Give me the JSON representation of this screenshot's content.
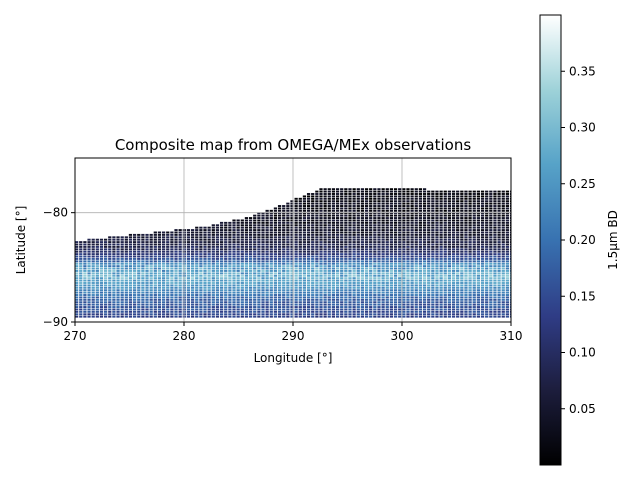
{
  "chart_data": {
    "type": "heatmap",
    "title": "Composite map from OMEGA/MEx observations",
    "xlabel": "Longitude [°]",
    "ylabel": "Latitude [°]",
    "xlim": [
      270,
      310
    ],
    "ylim": [
      -90,
      -75
    ],
    "xticks": [
      270,
      280,
      290,
      300,
      310
    ],
    "xtick_labels": [
      "270",
      "280",
      "290",
      "300",
      "310"
    ],
    "yticks": [
      -90,
      -80
    ],
    "ytick_labels": [
      "−90",
      "−80"
    ],
    "grid": true,
    "colorbar": {
      "label": "1.5µm BD",
      "range": [
        0.0,
        0.4
      ],
      "ticks": [
        0.05,
        0.1,
        0.15,
        0.2,
        0.25,
        0.3,
        0.35
      ],
      "tick_labels": [
        "0.05",
        "0.10",
        "0.15",
        "0.20",
        "0.25",
        "0.30",
        "0.35"
      ],
      "colormap": [
        "#000000",
        "#1d1e3e",
        "#2f3c85",
        "#3872b1",
        "#57a3c8",
        "#9cd1d8",
        "#ffffff"
      ]
    },
    "coverage_top_boundary": {
      "lon": [
        270,
        274,
        278,
        282,
        286,
        289,
        292.5,
        296,
        300,
        305,
        310
      ],
      "lat": [
        -82.7,
        -82.2,
        -81.8,
        -81.3,
        -80.4,
        -79.3,
        -77.8,
        -77.8,
        -77.9,
        -78.0,
        -78.1
      ]
    },
    "coverage_bottom_lat": -89.6,
    "band_profile": {
      "lat": [
        -78.0,
        -80.0,
        -82.0,
        -83.5,
        -85.0,
        -86.5,
        -88.0,
        -89.6
      ],
      "value": [
        0.02,
        0.03,
        0.05,
        0.09,
        0.22,
        0.27,
        0.18,
        0.14
      ]
    }
  }
}
